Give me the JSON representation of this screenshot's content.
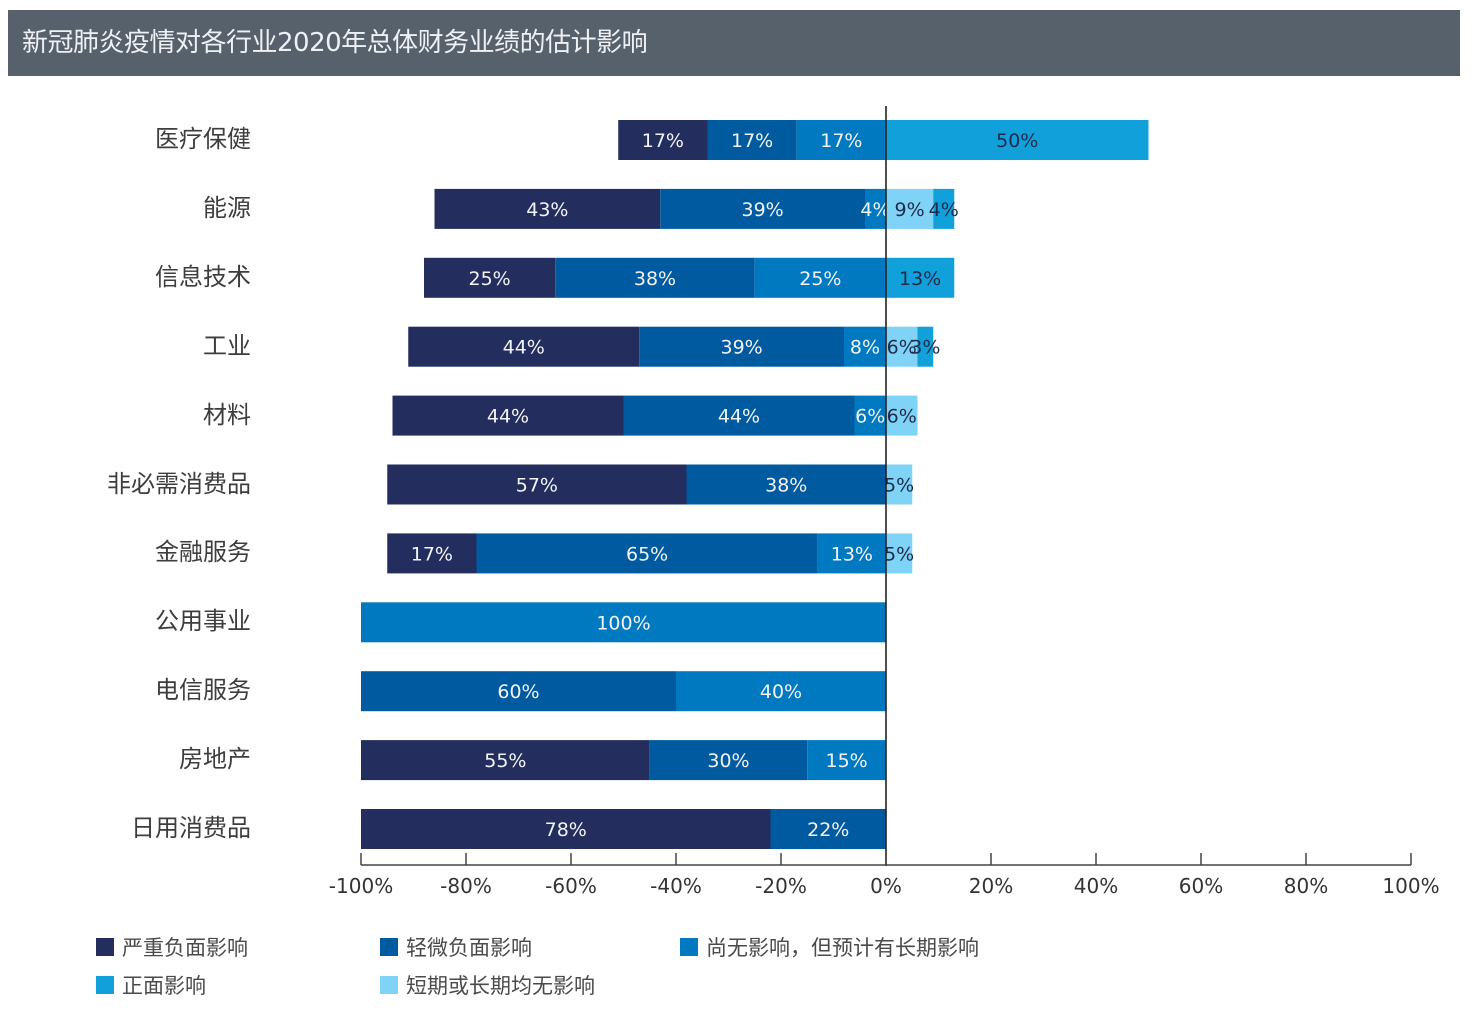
{
  "title": "新冠肺炎疫情对各行业2020年总体财务业绩的估计影响",
  "colors": {
    "severe": "#232e5f",
    "slight": "#005a9f",
    "notyet": "#0079c1",
    "positive": "#12a0db",
    "none": "#7fd3f7",
    "label_light": "#f2f4f8",
    "label_dark": "#1f2b4a"
  },
  "chart_data": {
    "type": "bar",
    "orientation": "horizontal-diverging-stacked",
    "title": "新冠肺炎疫情对各行业2020年总体财务业绩的估计影响",
    "xlabel": "",
    "ylabel": "",
    "xlim": [
      -100,
      100
    ],
    "xticks": [
      -100,
      -80,
      -60,
      -40,
      -20,
      0,
      20,
      40,
      60,
      80,
      100
    ],
    "xtick_labels": [
      "-100%",
      "-80%",
      "-60%",
      "-40%",
      "-20%",
      "0%",
      "20%",
      "40%",
      "60%",
      "80%",
      "100%"
    ],
    "grid": false,
    "legend_position": "bottom",
    "categories": [
      "医疗保健",
      "能源",
      "信息技术",
      "工业",
      "材料",
      "非必需消费品",
      "金融服务",
      "公用事业",
      "电信服务",
      "房地产",
      "日用消费品"
    ],
    "series": [
      {
        "key": "severe",
        "name": "严重负面影响",
        "side": "negative",
        "values": [
          17,
          43,
          25,
          44,
          44,
          57,
          17,
          0,
          0,
          55,
          78
        ]
      },
      {
        "key": "slight",
        "name": "轻微负面影响",
        "side": "negative",
        "values": [
          17,
          39,
          38,
          39,
          44,
          38,
          65,
          0,
          60,
          30,
          22
        ]
      },
      {
        "key": "notyet",
        "name": "尚无影响，但预计有长期影响",
        "side": "negative",
        "values": [
          17,
          4,
          25,
          8,
          6,
          0,
          13,
          100,
          40,
          15,
          0
        ]
      },
      {
        "key": "none",
        "name": "短期或长期均无影响",
        "side": "positive",
        "values": [
          0,
          9,
          0,
          6,
          6,
          5,
          5,
          0,
          0,
          0,
          0
        ]
      },
      {
        "key": "positive",
        "name": "正面影响",
        "side": "positive",
        "values": [
          50,
          4,
          13,
          3,
          0,
          0,
          0,
          0,
          0,
          0,
          0
        ]
      }
    ],
    "data_labels": [
      [
        "17%",
        "17%",
        "17%",
        "",
        "50%"
      ],
      [
        "43%",
        "39%",
        "4%",
        "9%",
        "4%"
      ],
      [
        "25%",
        "38%",
        "25%",
        "",
        "13%"
      ],
      [
        "44%",
        "39%",
        "8%",
        "6%",
        "3%"
      ],
      [
        "44%",
        "44%",
        "6%",
        "6%",
        ""
      ],
      [
        "57%",
        "38%",
        "",
        "5%",
        ""
      ],
      [
        "17%",
        "65%",
        "13%",
        "5%",
        ""
      ],
      [
        "",
        "",
        "100%",
        "",
        ""
      ],
      [
        "",
        "60%",
        "40%",
        "",
        ""
      ],
      [
        "55%",
        "30%",
        "15%",
        "",
        ""
      ],
      [
        "78%",
        "22%",
        "",
        "",
        ""
      ]
    ]
  },
  "legend": [
    {
      "key": "severe",
      "label": "严重负面影响"
    },
    {
      "key": "slight",
      "label": "轻微负面影响"
    },
    {
      "key": "notyet",
      "label": "尚无影响，但预计有长期影响"
    },
    {
      "key": "positive",
      "label": "正面影响"
    },
    {
      "key": "none",
      "label": "短期或长期均无影响"
    }
  ]
}
